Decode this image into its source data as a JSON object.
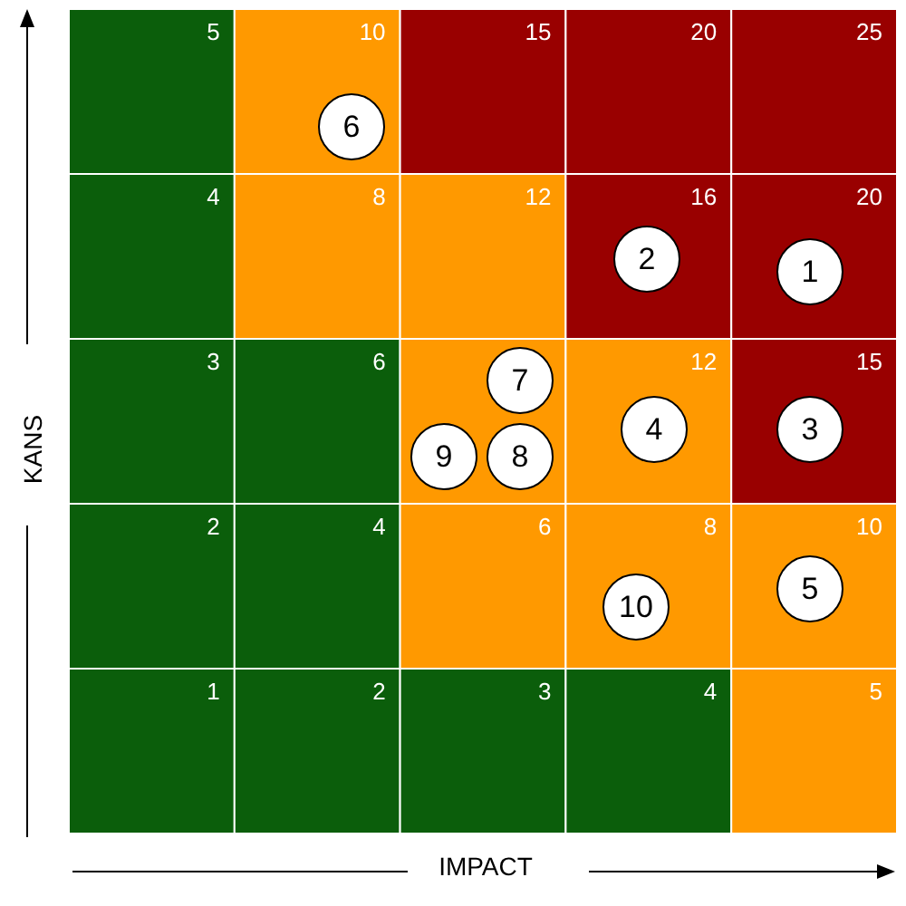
{
  "chart_data": {
    "type": "heatmap",
    "xlabel": "IMPACT",
    "ylabel": "KANS",
    "categories": [
      null,
      null,
      null,
      null,
      null
    ],
    "y_categories": [
      null,
      null,
      null,
      null,
      null
    ],
    "cells": [
      [
        5,
        10,
        15,
        20,
        25
      ],
      [
        4,
        8,
        12,
        16,
        20
      ],
      [
        3,
        6,
        null,
        12,
        15
      ],
      [
        2,
        4,
        6,
        8,
        10
      ],
      [
        1,
        2,
        3,
        4,
        5
      ]
    ],
    "cell_labels": [
      [
        "5",
        "10",
        "15",
        "20",
        "25"
      ],
      [
        "4",
        "8",
        "12",
        "16",
        "20"
      ],
      [
        "3",
        "6",
        null,
        "12",
        "15"
      ],
      [
        "2",
        "4",
        "6",
        "8",
        "10"
      ],
      [
        "1",
        "2",
        "3",
        "4",
        "5"
      ]
    ],
    "colors": [
      [
        "#0b5e0b",
        "#ff9900",
        "#990000",
        "#990000",
        "#990000"
      ],
      [
        "#0b5e0b",
        "#ff9900",
        "#ff9900",
        "#990000",
        "#990000"
      ],
      [
        "#0b5e0b",
        "#0b5e0b",
        "#ff9900",
        "#ff9900",
        "#990000"
      ],
      [
        "#0b5e0b",
        "#0b5e0b",
        "#ff9900",
        "#ff9900",
        "#ff9900"
      ],
      [
        "#0b5e0b",
        "#0b5e0b",
        "#0b5e0b",
        "#0b5e0b",
        "#ff9900"
      ]
    ],
    "annotations": [
      "1",
      "2",
      "3",
      "4",
      "5",
      "6",
      "7",
      "8",
      "9",
      "10"
    ]
  }
}
